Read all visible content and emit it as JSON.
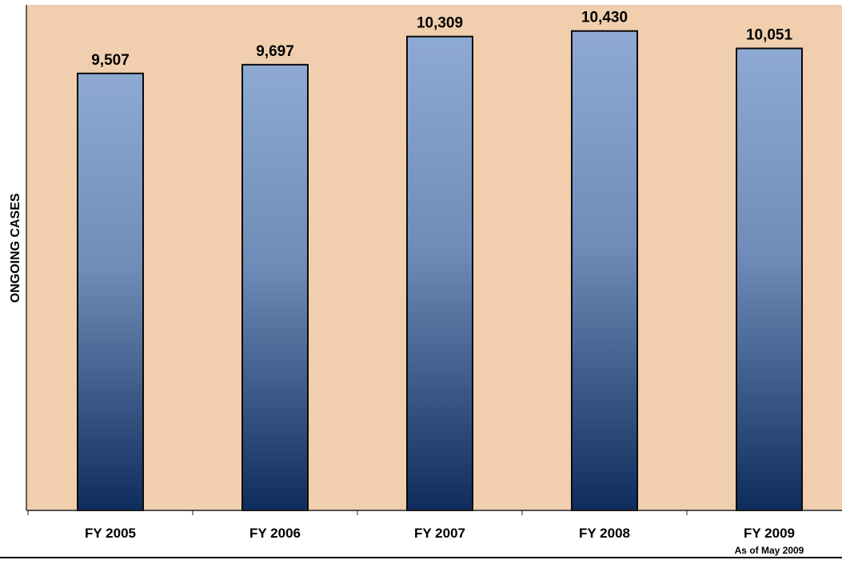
{
  "chart_data": {
    "type": "bar",
    "title": "",
    "xlabel": "",
    "ylabel": "ONGOING CASES",
    "categories": [
      "FY 2005",
      "FY 2006",
      "FY 2007",
      "FY 2008",
      "FY 2009"
    ],
    "category_notes": [
      "",
      "",
      "",
      "",
      "As of May 2009"
    ],
    "values": [
      9507,
      9697,
      10309,
      10430,
      10051
    ],
    "value_labels": [
      "9,507",
      "9,697",
      "10,309",
      "10,430",
      "10,051"
    ],
    "ylim": [
      0,
      11000
    ],
    "grid": false,
    "legend": "none",
    "colors": {
      "plot_background": "#f1cfae",
      "bar_top": "#8eaad3",
      "bar_mid": "#6f8cb8",
      "bar_bottom": "#0e2d5c",
      "bar_outline": "#0a0a0a"
    }
  }
}
